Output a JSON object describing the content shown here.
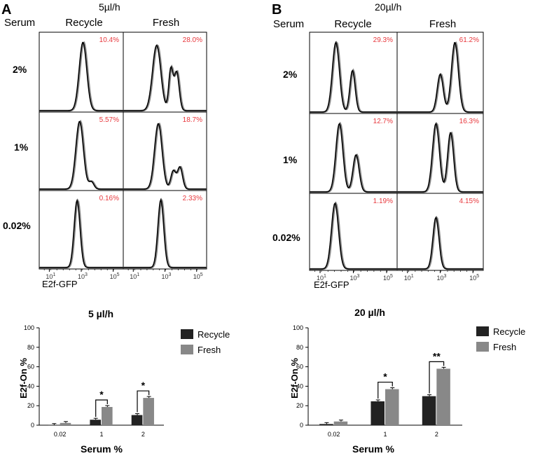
{
  "chart_data": [
    {
      "panel": "A",
      "type": "histogram-grid",
      "rate_label": "5µl/h",
      "row_header": "Serum",
      "columns": [
        "Recycle",
        "Fresh"
      ],
      "rows": [
        "2%",
        "1%",
        "0.02%"
      ],
      "percentages": [
        [
          "10.4%",
          "28.0%"
        ],
        [
          "5.57%",
          "18.7%"
        ],
        [
          "0.16%",
          "2.33%"
        ]
      ],
      "x_ticks": [
        "1",
        "3",
        "5"
      ],
      "x_tick_base": "10",
      "xlabel": "E2f-GFP"
    },
    {
      "panel": "B",
      "type": "histogram-grid",
      "rate_label": "20µl/h",
      "row_header": "Serum",
      "columns": [
        "Recycle",
        "Fresh"
      ],
      "rows": [
        "2%",
        "1%",
        "0.02%"
      ],
      "percentages": [
        [
          "29.3%",
          "61.2%"
        ],
        [
          "12.7%",
          "16.3%"
        ],
        [
          "1.19%",
          "4.15%"
        ]
      ],
      "x_ticks": [
        "1",
        "3",
        "5"
      ],
      "x_tick_base": "10",
      "xlabel": "E2f-GFP"
    },
    {
      "type": "bar",
      "title": "5 µl/h",
      "categories": [
        "0.02",
        "1",
        "2"
      ],
      "series": [
        {
          "name": "Recycle",
          "color": "#222222",
          "values": [
            0.2,
            5.6,
            10.4
          ]
        },
        {
          "name": "Fresh",
          "color": "#888888",
          "values": [
            2.3,
            18.7,
            28.0
          ]
        }
      ],
      "ylim": [
        0,
        100
      ],
      "yticks": [
        "0",
        "20",
        "40",
        "60",
        "80",
        "100"
      ],
      "xlabel": "Serum %",
      "ylabel": "E2f-On %",
      "significance": [
        {
          "category": "1",
          "label": "*"
        },
        {
          "category": "2",
          "label": "*"
        }
      ]
    },
    {
      "type": "bar",
      "title": "20 µl/h",
      "categories": [
        "0.02",
        "1",
        "2"
      ],
      "series": [
        {
          "name": "Recycle",
          "color": "#222222",
          "values": [
            1.2,
            24.5,
            29.8
          ]
        },
        {
          "name": "Fresh",
          "color": "#888888",
          "values": [
            3.8,
            37.0,
            58.0
          ]
        }
      ],
      "ylim": [
        0,
        100
      ],
      "yticks": [
        "0",
        "20",
        "40",
        "60",
        "80",
        "100"
      ],
      "xlabel": "Serum %",
      "ylabel": "E2f-On %",
      "significance": [
        {
          "category": "1",
          "label": "*"
        },
        {
          "category": "2",
          "label": "**"
        }
      ]
    }
  ]
}
